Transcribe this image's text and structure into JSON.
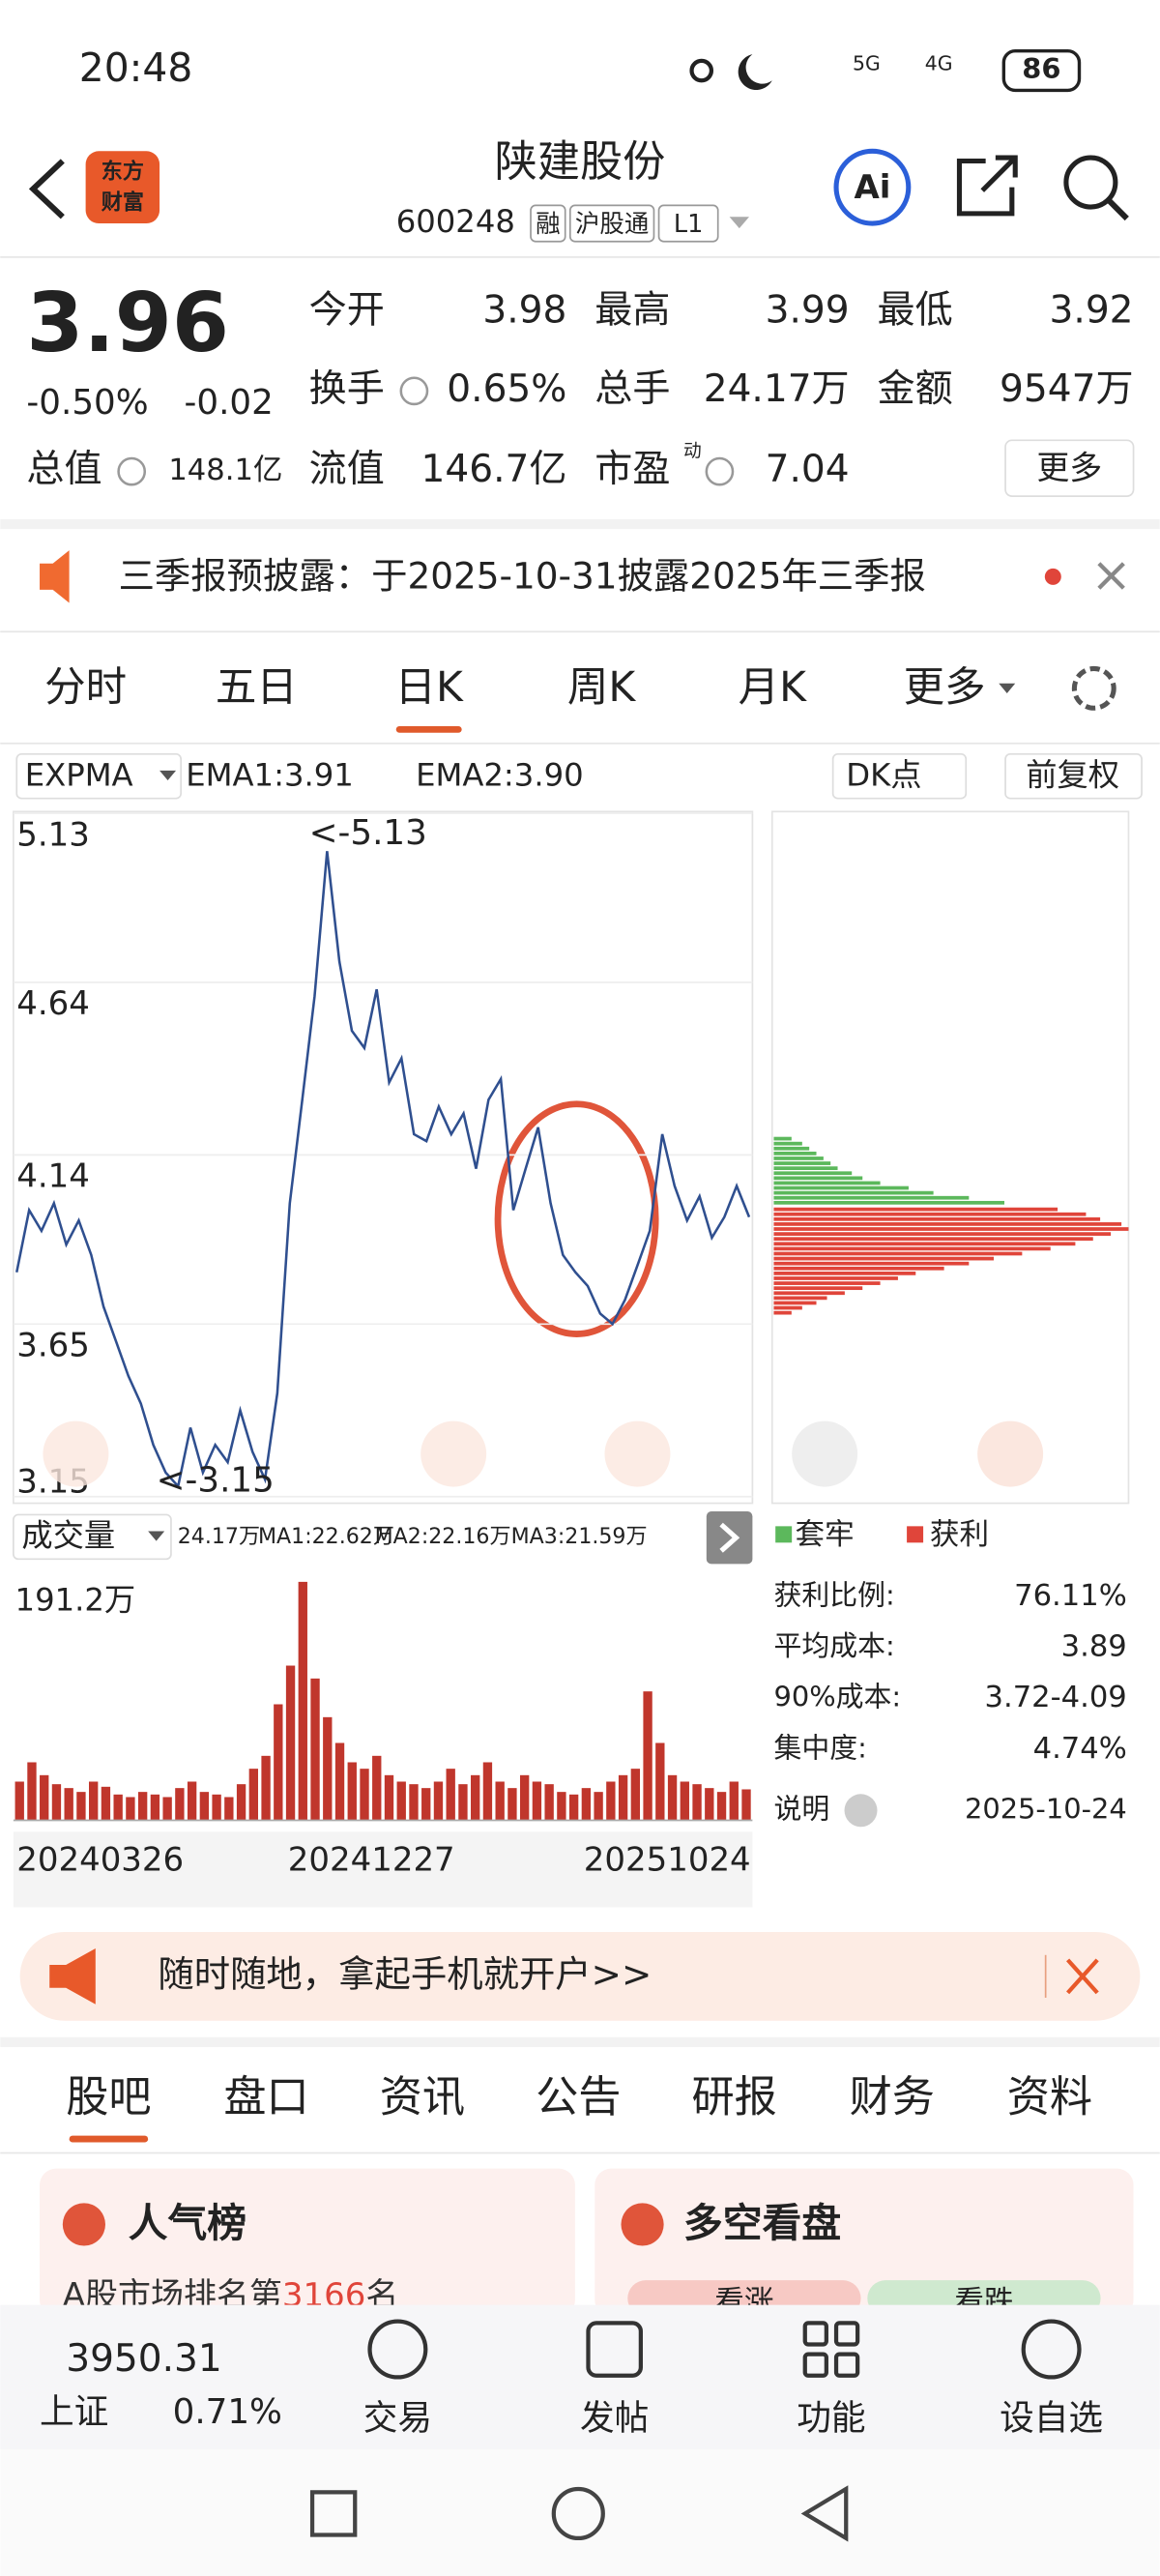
{
  "status_bar": {
    "time": "20:48",
    "network_1": "5G",
    "network_2": "4G",
    "battery": "86"
  },
  "header": {
    "logo": [
      "东方",
      "财富"
    ],
    "title": "陕建股份",
    "code": "600248",
    "tags": [
      "融",
      "沪股通",
      "L1"
    ],
    "ai": "Ai"
  },
  "quote": {
    "price": "3.96",
    "change_pct": "-0.50%",
    "change": "-0.02",
    "fields": [
      {
        "label": "今开",
        "value": "3.98"
      },
      {
        "label": "最高",
        "value": "3.99"
      },
      {
        "label": "最低",
        "value": "3.92"
      },
      {
        "label": "换手",
        "value": "0.65%"
      },
      {
        "label": "总手",
        "value": "24.17万"
      },
      {
        "label": "金额",
        "value": "9547万"
      },
      {
        "label": "总值",
        "value": "148.1亿"
      },
      {
        "label": "流值",
        "value": "146.7亿"
      },
      {
        "label": "市盈",
        "value": "7.04"
      }
    ],
    "pe_mark": "动",
    "more": "更多"
  },
  "notice": {
    "text": "三季报预披露：于2025-10-31披露2025年三季报"
  },
  "tabs": {
    "items": [
      "分时",
      "五日",
      "日K",
      "周K",
      "月K",
      "更多"
    ],
    "active": 2
  },
  "indicator": {
    "name": "EXPMA",
    "ema1": "EMA1:3.91",
    "ema2": "EMA2:3.90",
    "dk": "DK点",
    "adjust": "前复权"
  },
  "kline": {
    "ylim": [
      3.15,
      5.13
    ],
    "yticks": [
      5.13,
      4.64,
      4.14,
      3.65,
      3.15
    ],
    "max_label": "<-5.13",
    "min_label": "<-3.15",
    "color": "#2f4f8f",
    "close": [
      3.8,
      3.98,
      3.92,
      4.0,
      3.88,
      3.95,
      3.85,
      3.7,
      3.6,
      3.5,
      3.42,
      3.3,
      3.22,
      3.18,
      3.35,
      3.22,
      3.3,
      3.25,
      3.4,
      3.28,
      3.2,
      3.45,
      4.0,
      4.3,
      4.6,
      5.02,
      4.7,
      4.5,
      4.45,
      4.62,
      4.35,
      4.42,
      4.2,
      4.18,
      4.28,
      4.2,
      4.26,
      4.1,
      4.3,
      4.36,
      3.98,
      4.1,
      4.22,
      4.0,
      3.85,
      3.8,
      3.76,
      3.68,
      3.65,
      3.72,
      3.82,
      3.92,
      4.2,
      4.05,
      3.95,
      4.02,
      3.9,
      3.96,
      4.05,
      3.96
    ]
  },
  "volume": {
    "label": "成交量",
    "current": "24.17万",
    "ma1": "MA1:22.62万",
    "ma2": "MA2:22.16万",
    "ma3": "MA3:21.59万",
    "max_label": "191.2万",
    "ylim": [
      0,
      191.2
    ],
    "color": "#c0362c",
    "values": [
      30,
      45,
      35,
      28,
      25,
      22,
      30,
      26,
      20,
      18,
      22,
      20,
      18,
      25,
      30,
      22,
      20,
      18,
      28,
      40,
      50,
      90,
      120,
      185,
      110,
      80,
      60,
      45,
      40,
      50,
      35,
      30,
      28,
      25,
      30,
      40,
      28,
      35,
      45,
      30,
      25,
      35,
      30,
      28,
      22,
      20,
      25,
      22,
      30,
      35,
      40,
      100,
      60,
      35,
      30,
      28,
      25,
      22,
      30,
      24
    ],
    "dates": [
      "20240326",
      "20241227",
      "20251024"
    ]
  },
  "chips": {
    "legend": [
      {
        "name": "套牢",
        "color": "#5cb85c"
      },
      {
        "name": "获利",
        "color": "#e0453a"
      }
    ],
    "xlim": [
      0,
      100
    ],
    "trapped": [
      5,
      8,
      10,
      12,
      14,
      16,
      18,
      22,
      25,
      30,
      38,
      45,
      55,
      65
    ],
    "profit": [
      80,
      88,
      92,
      98,
      100,
      95,
      90,
      85,
      78,
      70,
      62,
      55,
      48,
      40,
      35,
      30,
      25,
      20,
      15,
      12,
      8,
      5
    ],
    "stats": [
      {
        "label": "获利比例:",
        "value": "76.11%"
      },
      {
        "label": "平均成本:",
        "value": "3.89"
      },
      {
        "label": "90%成本:",
        "value": "3.72-4.09"
      },
      {
        "label": "集中度:",
        "value": "4.74%"
      }
    ],
    "note": "说明",
    "date": "2025-10-24"
  },
  "banner": {
    "text": "随时随地，拿起手机就开户>>"
  },
  "section_tabs": {
    "items": [
      "股吧",
      "盘口",
      "资讯",
      "公告",
      "研报",
      "财务",
      "资料"
    ],
    "active": 0
  },
  "cards": {
    "popular": {
      "title": "人气榜",
      "rank_prefix": "A股市场排名第",
      "rank": "3166",
      "rank_suffix": "名"
    },
    "sentiment": {
      "title": "多空看盘",
      "bull": "看涨",
      "bear": "看跌"
    }
  },
  "bottom_nav": {
    "index_value": "3950.31",
    "index_name": "上证",
    "index_change": "0.71%",
    "items": [
      "交易",
      "发帖",
      "功能",
      "设自选"
    ]
  }
}
